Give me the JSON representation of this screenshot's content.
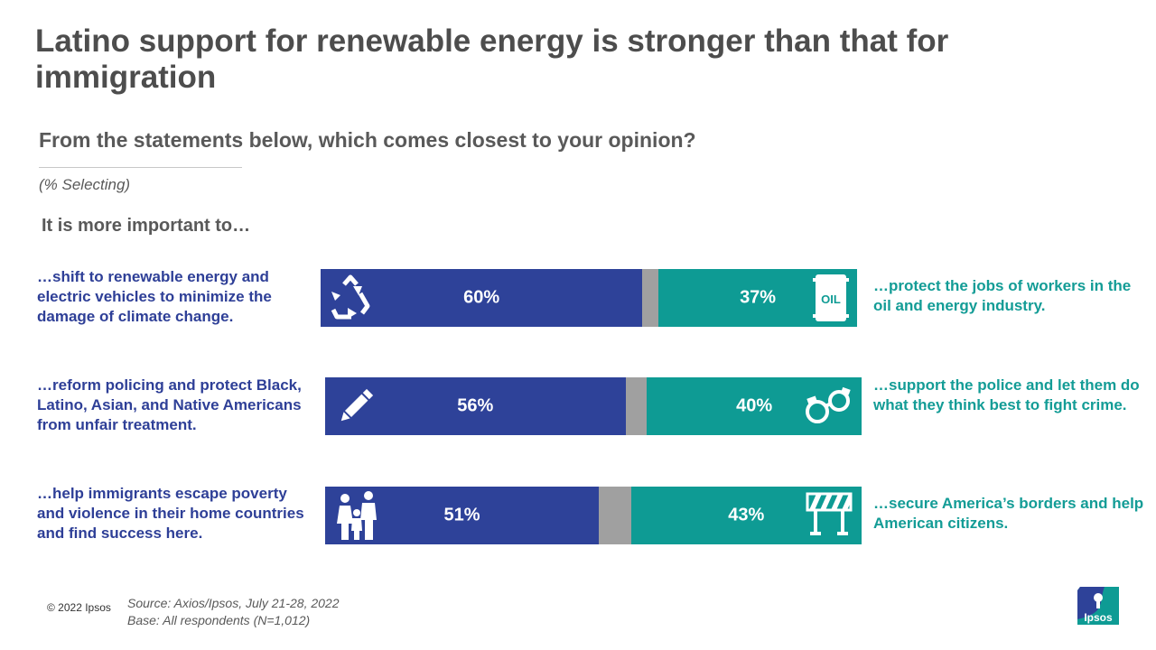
{
  "title": "Latino support for renewable energy is stronger than that for immigration",
  "subtitle": "From the statements below, which comes closest to your opinion?",
  "note": "(% Selecting)",
  "intro": "It is more important to…",
  "colors": {
    "left": "#2e4299",
    "neutral": "#a0a0a0",
    "right": "#0e9b94",
    "left_text": "#2e3f97",
    "right_text": "#139c96"
  },
  "chart_data": {
    "type": "bar",
    "orientation": "horizontal-stacked",
    "unit": "%",
    "series": [
      {
        "name": "left statement",
        "values": [
          60,
          56,
          51
        ]
      },
      {
        "name": "neither",
        "values": [
          3,
          4,
          6
        ]
      },
      {
        "name": "right statement",
        "values": [
          37,
          40,
          43
        ]
      }
    ],
    "rows": [
      {
        "left_label": "…shift to renewable energy and electric vehicles to minimize the damage of climate change.",
        "right_label": "…protect the jobs of workers in the oil and energy industry.",
        "left_value": 60,
        "right_value": 37,
        "left_value_label": "60%",
        "right_value_label": "37%",
        "left_icon": "recycle-icon",
        "right_icon": "oil-barrel-icon",
        "right_icon_text": "OIL"
      },
      {
        "left_label": "…reform policing and protect Black, Latino, Asian, and Native Americans from unfair treatment.",
        "right_label": "…support the police and let them do what they think best to fight crime.",
        "left_value": 56,
        "right_value": 40,
        "left_value_label": "56%",
        "right_value_label": "40%",
        "left_icon": "pencil-icon",
        "right_icon": "handcuffs-icon"
      },
      {
        "left_label": "…help immigrants escape poverty and violence in their home countries and find success here.",
        "right_label": "…secure America’s borders and help American citizens.",
        "left_value": 51,
        "right_value": 43,
        "left_value_label": "51%",
        "right_value_label": "43%",
        "left_icon": "family-icon",
        "right_icon": "barrier-icon"
      }
    ]
  },
  "footer": {
    "copyright": "© 2022 Ipsos",
    "source": "Source: Axios/Ipsos, July 21-28, 2022",
    "base": "Base: All respondents (N=1,012)",
    "logo_text": "Ipsos"
  }
}
